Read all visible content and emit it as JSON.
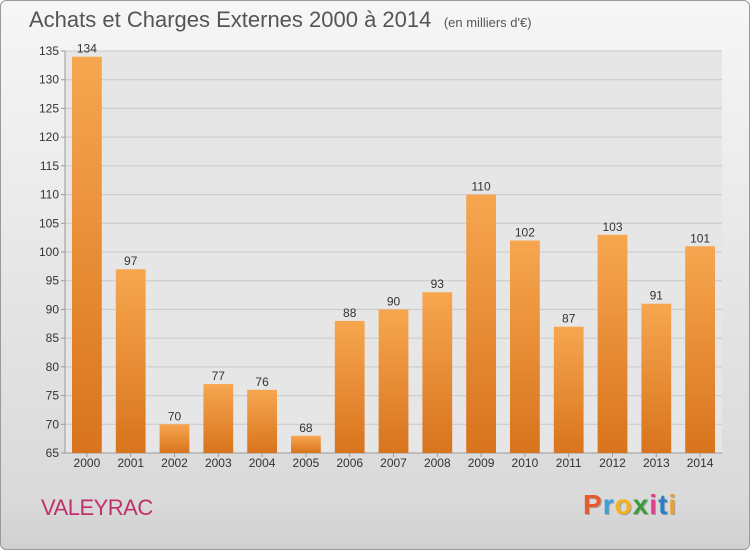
{
  "header": {
    "title": "Achats et Charges Externes 2000 à 2014",
    "subtitle": "(en milliers d'€)"
  },
  "commune": "VALEYRAC",
  "logo": {
    "text": "Proxiti",
    "colors": [
      "#e65a2c",
      "#3aa0d8",
      "#f2b31b",
      "#3d9b3a",
      "#e03f8f",
      "#2a7fc9",
      "#f0a028"
    ]
  },
  "chart_data": {
    "type": "bar",
    "categories": [
      "2000",
      "2001",
      "2002",
      "2003",
      "2004",
      "2005",
      "2006",
      "2007",
      "2008",
      "2009",
      "2010",
      "2011",
      "2012",
      "2013",
      "2014"
    ],
    "values": [
      134,
      97,
      70,
      77,
      76,
      68,
      88,
      90,
      93,
      110,
      102,
      87,
      103,
      91,
      101
    ],
    "ylim": [
      65,
      135
    ],
    "yticks": [
      65,
      70,
      75,
      80,
      85,
      90,
      95,
      100,
      105,
      110,
      115,
      120,
      125,
      130,
      135
    ],
    "grid": true,
    "colors": {
      "bar_light": "#f7a650",
      "bar_dark": "#d8741d",
      "grid": "#c9c9c9",
      "axis": "#999999"
    }
  }
}
